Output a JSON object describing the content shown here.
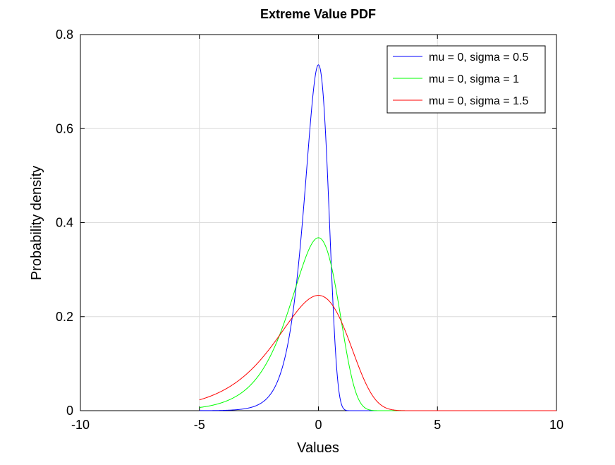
{
  "chart_data": {
    "type": "line",
    "title": "Extreme Value PDF",
    "xlabel": "Values",
    "ylabel": "Probability density",
    "xlim": [
      -10,
      10
    ],
    "ylim": [
      0,
      0.8
    ],
    "xticks": [
      -10,
      -5,
      0,
      5,
      10
    ],
    "xtick_labels": [
      "-10",
      "-5",
      "0",
      "5",
      "10"
    ],
    "yticks": [
      0,
      0.2,
      0.4,
      0.6,
      0.8
    ],
    "ytick_labels": [
      "0",
      "0.2",
      "0.4",
      "0.6",
      "0.8"
    ],
    "grid": true,
    "legend_position": "top-right",
    "distribution": "extreme value (Gumbel, minimum)",
    "x_domain": [
      -5,
      10
    ],
    "series": [
      {
        "name": "mu = 0, sigma = 0.5",
        "mu": 0,
        "sigma": 0.5,
        "color": "#0000ff",
        "peak": 0.7358
      },
      {
        "name": "mu = 0, sigma = 1",
        "mu": 0,
        "sigma": 1,
        "color": "#00ff00",
        "peak": 0.3679
      },
      {
        "name": "mu = 0, sigma = 1.5",
        "mu": 0,
        "sigma": 1.5,
        "color": "#ff0000",
        "peak": 0.2453
      }
    ]
  }
}
